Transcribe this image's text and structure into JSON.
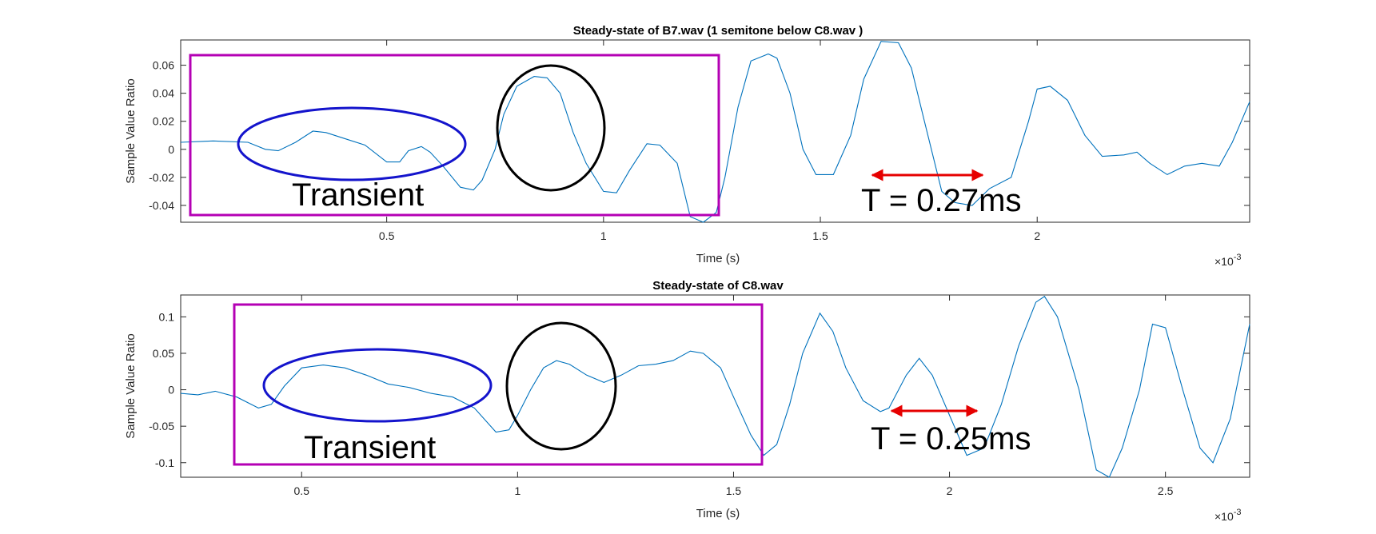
{
  "chart_data": [
    {
      "type": "line",
      "title": "Steady-state of B7.wav (1 semitone below C8.wav )",
      "xlabel": "Time (s)",
      "ylabel": "Sample Value Ratio",
      "x_exponent": "×10",
      "x_exponent_power": "-3",
      "xlim": [
        2.5e-05,
        0.00249
      ],
      "ylim": [
        -0.052,
        0.078
      ],
      "x_ticks": [
        0.0005,
        0.001,
        0.0015,
        0.002
      ],
      "x_tick_labels": [
        "0.5",
        "1",
        "1.5",
        "2"
      ],
      "y_ticks": [
        -0.04,
        -0.02,
        0,
        0.02,
        0.04,
        0.06
      ],
      "y_tick_labels": [
        "-0.04",
        "-0.02",
        "0",
        "0.02",
        "0.04",
        "0.06"
      ],
      "line_color": "#0072BD",
      "series": [
        {
          "x": [
            2.5e-05,
            0.0001,
            0.00018,
            0.00022,
            0.00025,
            0.00029,
            0.00033,
            0.00036,
            0.0004,
            0.00045,
            0.0005,
            0.00053,
            0.00055,
            0.00058,
            0.0006,
            0.00063,
            0.00067,
            0.0007,
            0.00072,
            0.00075,
            0.00077,
            0.0008,
            0.00084,
            0.00087,
            0.0009,
            0.00093,
            0.00096,
            0.001,
            0.00103,
            0.00106,
            0.0011,
            0.00113,
            0.00117,
            0.0012,
            0.00123,
            0.00126,
            0.00128,
            0.00131,
            0.00134,
            0.00138,
            0.0014,
            0.00143,
            0.00146,
            0.00149,
            0.00153,
            0.00157,
            0.0016,
            0.00164,
            0.00168,
            0.00171,
            0.00174,
            0.00178,
            0.00181,
            0.00185,
            0.00189,
            0.00194,
            0.00198,
            0.002,
            0.00203,
            0.00207,
            0.00211,
            0.00215,
            0.0022,
            0.00223,
            0.00226,
            0.0023,
            0.00234,
            0.00238,
            0.00242,
            0.00245,
            0.00249
          ],
          "y": [
            0.005,
            0.006,
            0.005,
            0.0,
            -0.001,
            0.005,
            0.013,
            0.012,
            0.008,
            0.003,
            -0.009,
            -0.009,
            -0.001,
            0.002,
            -0.002,
            -0.012,
            -0.027,
            -0.029,
            -0.022,
            0.0,
            0.025,
            0.045,
            0.052,
            0.051,
            0.04,
            0.012,
            -0.01,
            -0.03,
            -0.031,
            -0.015,
            0.004,
            0.003,
            -0.01,
            -0.048,
            -0.052,
            -0.045,
            -0.02,
            0.03,
            0.063,
            0.068,
            0.065,
            0.04,
            0.0,
            -0.018,
            -0.018,
            0.01,
            0.05,
            0.077,
            0.076,
            0.058,
            0.02,
            -0.03,
            -0.038,
            -0.04,
            -0.028,
            -0.02,
            0.02,
            0.043,
            0.045,
            0.035,
            0.01,
            -0.005,
            -0.004,
            -0.002,
            -0.01,
            -0.018,
            -0.012,
            -0.01,
            -0.012,
            0.005,
            0.034
          ]
        }
      ],
      "annotations": {
        "transient_label": "Transient",
        "period_label": "T = 0.27ms",
        "colors": {
          "box": "#B400B4",
          "transient_ellipse": "#1414CC",
          "ellipse": "#000000",
          "arrow": "#E60000"
        }
      }
    },
    {
      "type": "line",
      "title": "Steady-state of C8.wav",
      "xlabel": "Time (s)",
      "ylabel": "Sample Value Ratio",
      "x_exponent": "×10",
      "x_exponent_power": "-3",
      "xlim": [
        0.00022,
        0.002695
      ],
      "ylim": [
        -0.12,
        0.13
      ],
      "x_ticks": [
        0.0005,
        0.001,
        0.0015,
        0.002,
        0.0025
      ],
      "x_tick_labels": [
        "0.5",
        "1",
        "1.5",
        "2",
        "2.5"
      ],
      "y_ticks": [
        -0.1,
        -0.05,
        0,
        0.05,
        0.1
      ],
      "y_tick_labels": [
        "-0.1",
        "-0.05",
        "0",
        "0.05",
        "0.1"
      ],
      "line_color": "#0072BD",
      "series": [
        {
          "x": [
            0.00022,
            0.00026,
            0.0003,
            0.00035,
            0.0004,
            0.00043,
            0.00046,
            0.0005,
            0.00055,
            0.0006,
            0.00065,
            0.0007,
            0.00075,
            0.0008,
            0.00085,
            0.0009,
            0.00095,
            0.00098,
            0.001,
            0.00103,
            0.00106,
            0.00109,
            0.00112,
            0.00116,
            0.0012,
            0.00124,
            0.00128,
            0.00132,
            0.00136,
            0.0014,
            0.00143,
            0.00147,
            0.0015,
            0.00154,
            0.00157,
            0.0016,
            0.00163,
            0.00166,
            0.0017,
            0.00173,
            0.00176,
            0.0018,
            0.00184,
            0.00186,
            0.0019,
            0.00193,
            0.00196,
            0.002,
            0.00204,
            0.00208,
            0.00212,
            0.00216,
            0.0022,
            0.00222,
            0.00225,
            0.0023,
            0.00234,
            0.00237,
            0.0024,
            0.00244,
            0.00247,
            0.0025,
            0.00254,
            0.00258,
            0.00261,
            0.00265,
            0.002695
          ],
          "y": [
            -0.005,
            -0.007,
            -0.002,
            -0.01,
            -0.025,
            -0.02,
            0.005,
            0.03,
            0.034,
            0.03,
            0.02,
            0.008,
            0.003,
            -0.005,
            -0.01,
            -0.025,
            -0.058,
            -0.055,
            -0.035,
            0.0,
            0.03,
            0.04,
            0.035,
            0.02,
            0.01,
            0.02,
            0.033,
            0.035,
            0.04,
            0.053,
            0.05,
            0.03,
            -0.01,
            -0.062,
            -0.09,
            -0.075,
            -0.02,
            0.05,
            0.105,
            0.08,
            0.03,
            -0.015,
            -0.03,
            -0.025,
            0.02,
            0.043,
            0.02,
            -0.035,
            -0.09,
            -0.08,
            -0.02,
            0.06,
            0.12,
            0.128,
            0.1,
            0.0,
            -0.11,
            -0.125,
            -0.08,
            0.0,
            0.09,
            0.085,
            0.0,
            -0.08,
            -0.1,
            -0.04,
            0.09
          ]
        }
      ],
      "annotations": {
        "transient_label": "Transient",
        "period_label": "T = 0.25ms",
        "colors": {
          "box": "#B400B4",
          "transient_ellipse": "#1414CC",
          "ellipse": "#000000",
          "arrow": "#E60000"
        }
      }
    }
  ]
}
